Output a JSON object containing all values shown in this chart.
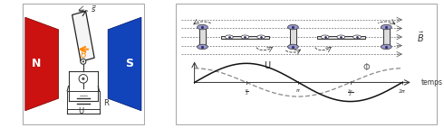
{
  "fig_width": 4.9,
  "fig_height": 1.42,
  "dpi": 100,
  "bg_color": "#ffffff",
  "left_panel": {
    "N_color": "#cc1111",
    "S_color": "#1144bb",
    "B_color": "#ff8800",
    "label_N": "N",
    "label_S": "S",
    "label_U": "U",
    "label_R": "R"
  },
  "right_panel": {
    "B_label": "$\\vec{B}$",
    "U_label": "U",
    "Phi_label": "$\\Phi$",
    "temps_label": "temps",
    "field_color": "#555555",
    "sine_color": "#111111",
    "cosine_color": "#555555",
    "frame_color": "#333333",
    "dot_fill": "#8888bb"
  }
}
